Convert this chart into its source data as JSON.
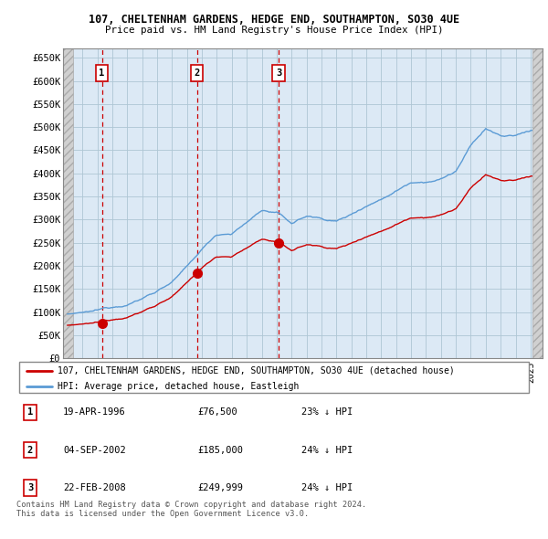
{
  "title_line1": "107, CHELTENHAM GARDENS, HEDGE END, SOUTHAMPTON, SO30 4UE",
  "title_line2": "Price paid vs. HM Land Registry's House Price Index (HPI)",
  "ytick_labels": [
    "£0",
    "£50K",
    "£100K",
    "£150K",
    "£200K",
    "£250K",
    "£300K",
    "£350K",
    "£400K",
    "£450K",
    "£500K",
    "£550K",
    "£600K",
    "£650K"
  ],
  "ytick_values": [
    0,
    50000,
    100000,
    150000,
    200000,
    250000,
    300000,
    350000,
    400000,
    450000,
    500000,
    550000,
    600000,
    650000
  ],
  "sale_prices": [
    76500,
    185000,
    249999
  ],
  "sale_year_floats": [
    1996.3,
    2002.67,
    2008.14
  ],
  "sale_labels": [
    "1",
    "2",
    "3"
  ],
  "sale_label_info": [
    {
      "num": "1",
      "date": "19-APR-1996",
      "price": "£76,500",
      "hpi": "23% ↓ HPI"
    },
    {
      "num": "2",
      "date": "04-SEP-2002",
      "price": "£185,000",
      "hpi": "24% ↓ HPI"
    },
    {
      "num": "3",
      "date": "22-FEB-2008",
      "price": "£249,999",
      "hpi": "24% ↓ HPI"
    }
  ],
  "property_line_color": "#cc0000",
  "hpi_line_color": "#5b9bd5",
  "sale_marker_color": "#cc0000",
  "sale_vline_color": "#cc0000",
  "chart_bg_color": "#dce9f5",
  "hatch_color": "#c8c8c8",
  "legend_property": "107, CHELTENHAM GARDENS, HEDGE END, SOUTHAMPTON, SO30 4UE (detached house)",
  "legend_hpi": "HPI: Average price, detached house, Eastleigh",
  "footer": "Contains HM Land Registry data © Crown copyright and database right 2024.\nThis data is licensed under the Open Government Licence v3.0.",
  "xlim_left": 1993.7,
  "xlim_right": 2025.8,
  "ylim_top": 670000,
  "data_start": 1994.4,
  "data_end": 2025.1
}
